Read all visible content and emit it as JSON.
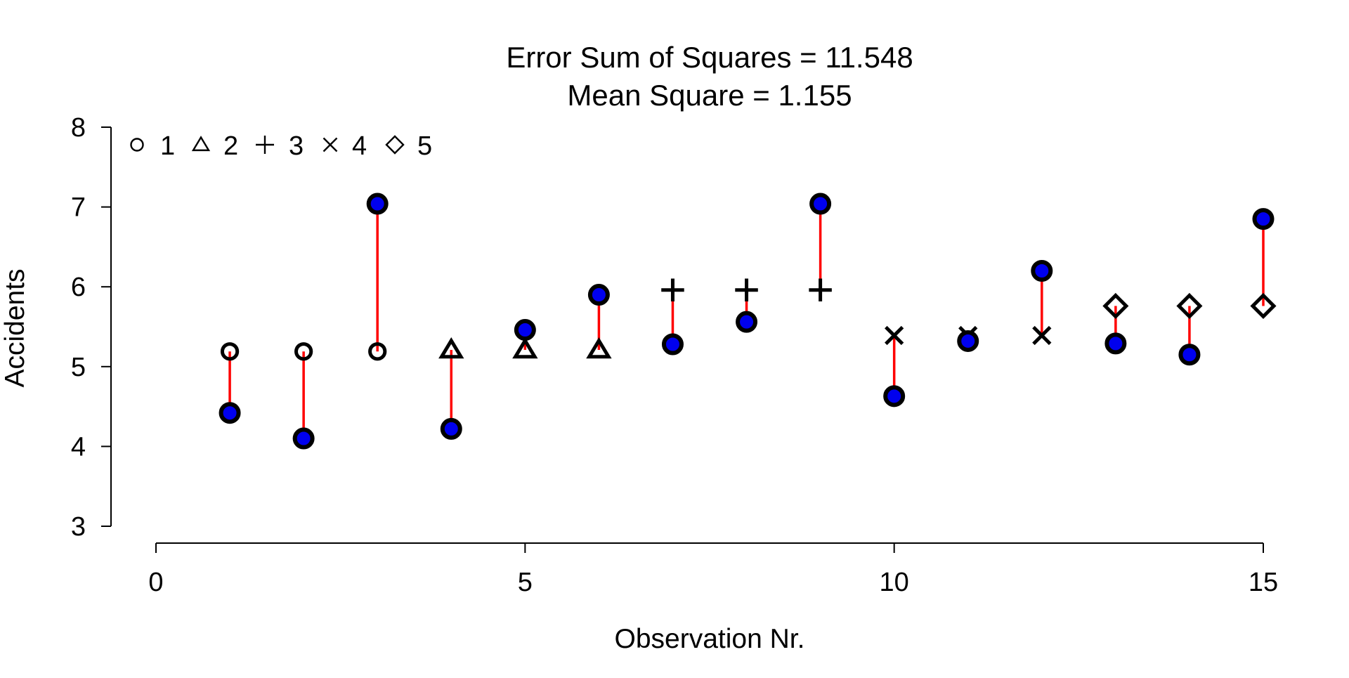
{
  "chart_data": {
    "type": "scatter",
    "title": "Error Sum of Squares = 11.548",
    "subtitle": "Mean Square = 1.155",
    "xlabel": "Observation Nr.",
    "ylabel": "Accidents",
    "xlim": [
      0,
      15
    ],
    "ylim": [
      3,
      8
    ],
    "x_ticks": [
      "0",
      "5",
      "10",
      "15"
    ],
    "y_ticks": [
      "3",
      "4",
      "5",
      "6",
      "7",
      "8"
    ],
    "grid": false,
    "legend_position": "top-left",
    "legend": [
      {
        "group": "1",
        "symbol": "circle"
      },
      {
        "group": "2",
        "symbol": "triangle"
      },
      {
        "group": "3",
        "symbol": "plus"
      },
      {
        "group": "4",
        "symbol": "cross"
      },
      {
        "group": "5",
        "symbol": "diamond"
      }
    ],
    "observations": [
      {
        "x": 1,
        "group": "1",
        "observed": 4.42,
        "fitted": 5.19
      },
      {
        "x": 2,
        "group": "1",
        "observed": 4.1,
        "fitted": 5.19
      },
      {
        "x": 3,
        "group": "1",
        "observed": 7.04,
        "fitted": 5.19
      },
      {
        "x": 4,
        "group": "2",
        "observed": 4.22,
        "fitted": 5.21
      },
      {
        "x": 5,
        "group": "2",
        "observed": 5.46,
        "fitted": 5.21
      },
      {
        "x": 6,
        "group": "2",
        "observed": 5.9,
        "fitted": 5.21
      },
      {
        "x": 7,
        "group": "3",
        "observed": 5.28,
        "fitted": 5.96
      },
      {
        "x": 8,
        "group": "3",
        "observed": 5.56,
        "fitted": 5.96
      },
      {
        "x": 9,
        "group": "3",
        "observed": 7.04,
        "fitted": 5.96
      },
      {
        "x": 10,
        "group": "4",
        "observed": 4.63,
        "fitted": 5.39
      },
      {
        "x": 11,
        "group": "4",
        "observed": 5.32,
        "fitted": 5.39
      },
      {
        "x": 12,
        "group": "4",
        "observed": 6.2,
        "fitted": 5.39
      },
      {
        "x": 13,
        "group": "5",
        "observed": 5.29,
        "fitted": 5.76
      },
      {
        "x": 14,
        "group": "5",
        "observed": 5.15,
        "fitted": 5.76
      },
      {
        "x": 15,
        "group": "5",
        "observed": 6.85,
        "fitted": 5.76
      }
    ],
    "colors": {
      "observed_fill": "#0000ee",
      "observed_outline": "#000000",
      "residual_line": "#ff0000",
      "fitted_symbol": "#000000",
      "axis": "#000000"
    }
  }
}
